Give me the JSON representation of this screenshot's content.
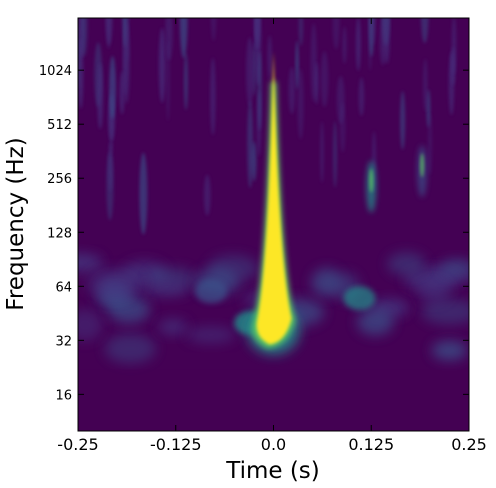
{
  "chart_data": {
    "type": "heatmap",
    "title": "",
    "xlabel": "Time (s)",
    "ylabel": "Frequency (Hz)",
    "xlim": [
      -0.25,
      0.25
    ],
    "ylim": [
      10,
      2000
    ],
    "y_scale": "log2",
    "x_ticks": [
      -0.25,
      -0.125,
      0.0,
      0.125,
      0.25
    ],
    "x_tick_labels": [
      "-0.25",
      "-0.125",
      "0.0",
      "0.125",
      "0.25"
    ],
    "y_ticks": [
      16,
      32,
      64,
      128,
      256,
      512,
      1024
    ],
    "y_tick_labels": [
      "16",
      "32",
      "64",
      "128",
      "256",
      "512",
      "1024"
    ],
    "colormap": [
      "#440154",
      "#3b528b",
      "#21918c",
      "#5ec962",
      "#fde725"
    ],
    "grid": false,
    "features": [
      {
        "name": "main-chirp",
        "t": 0.0,
        "f_low": 32,
        "f_high": 1300,
        "intensity": 1.0
      },
      {
        "name": "low-blob-left",
        "t": -0.03,
        "f": 40,
        "intensity": 0.55
      },
      {
        "name": "low-blob-right",
        "t": 0.11,
        "f": 55,
        "intensity": 0.35
      },
      {
        "name": "glitch-right",
        "t": 0.125,
        "f": 230,
        "intensity": 0.4
      },
      {
        "name": "glitch-left-low",
        "t": -0.08,
        "f": 60,
        "intensity": 0.3
      },
      {
        "name": "glitch-far-right",
        "t": 0.19,
        "f": 280,
        "intensity": 0.25
      }
    ]
  }
}
